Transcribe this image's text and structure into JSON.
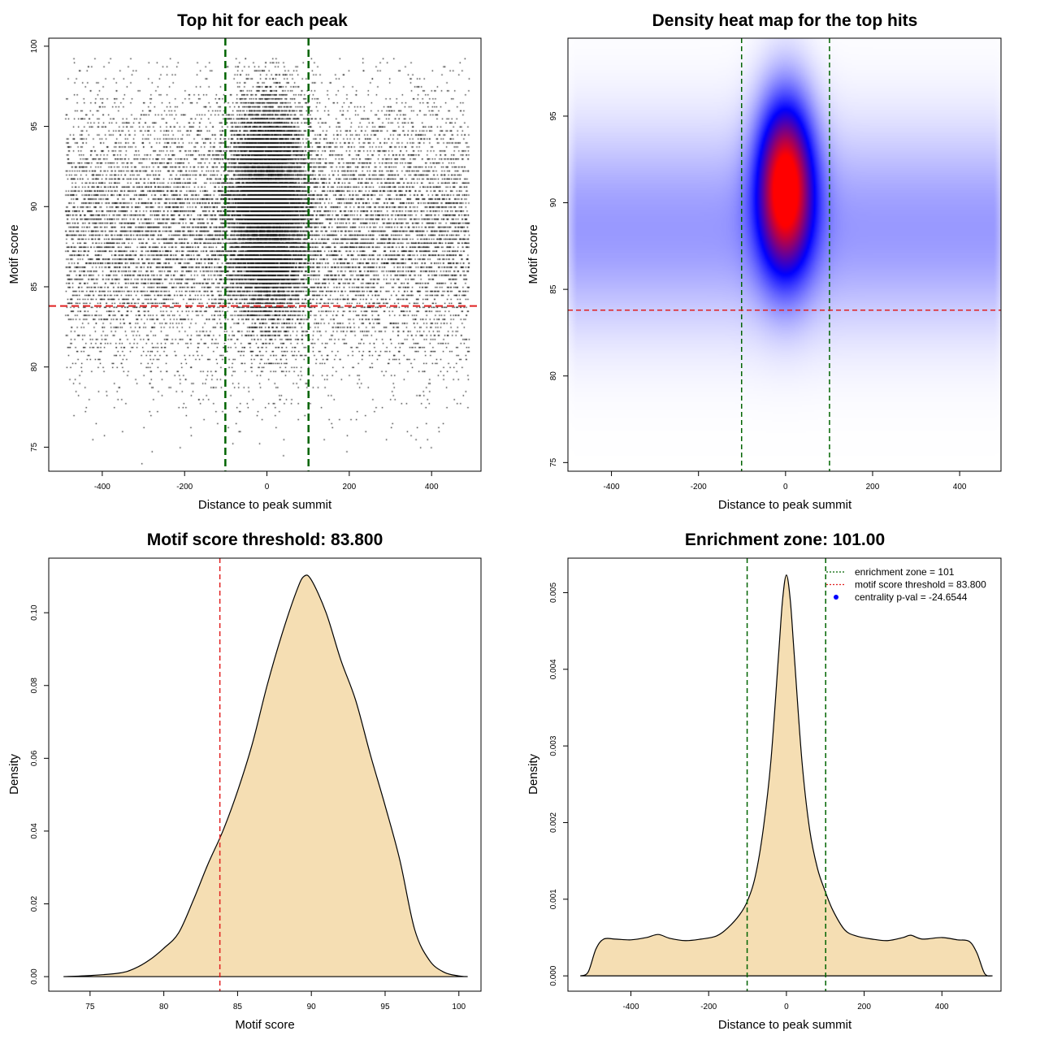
{
  "chart_data": [
    {
      "type": "scatter",
      "title": "Top hit for each peak",
      "xlabel": "Distance to peak summit",
      "ylabel": "Motif score",
      "xlim": [
        -530,
        520
      ],
      "ylim": [
        73.5,
        100.5
      ],
      "xticks": [
        -400,
        -200,
        0,
        200,
        400
      ],
      "yticks": [
        75,
        80,
        85,
        90,
        95,
        100
      ],
      "xtick_labels": [
        "-400",
        "-200",
        "0",
        "200",
        "400"
      ],
      "ytick_labels": [
        "75",
        "80",
        "85",
        "90",
        "95",
        "100"
      ],
      "n_points": 26000,
      "distribution": {
        "background_x_range": [
          -490,
          490
        ],
        "background_score_mean": 88.5,
        "background_score_sd": 4.2,
        "central_x_sd": 45,
        "central_score_mean": 90,
        "central_score_sd": 3.3
      },
      "vlines": [
        -101,
        101
      ],
      "hline": 83.8,
      "vline_color": "#006400",
      "hline_color": "#e02020",
      "grid": false
    },
    {
      "type": "heatmap",
      "title": "Density heat map for the top hits",
      "xlabel": "Distance to peak summit",
      "ylabel": "Motif score",
      "xlim": [
        -500,
        495
      ],
      "ylim": [
        74.5,
        99.5
      ],
      "xticks": [
        -400,
        -200,
        0,
        200,
        400
      ],
      "yticks": [
        75,
        80,
        85,
        90,
        95
      ],
      "xtick_labels": [
        "-400",
        "-200",
        "0",
        "200",
        "400"
      ],
      "ytick_labels": [
        "75",
        "80",
        "85",
        "90",
        "95"
      ],
      "hotspot": {
        "x": 0,
        "y": 91,
        "x_sd": 45,
        "y_sd": 3.5
      },
      "background": {
        "x_range": [
          -490,
          490
        ],
        "y": 88.5,
        "y_sd": 4
      },
      "colors": [
        "#ffffff",
        "#0000ff",
        "#ff0000"
      ],
      "vlines": [
        -101,
        101
      ],
      "hline": 83.8,
      "vline_color": "#006400",
      "hline_color": "#e02020"
    },
    {
      "type": "area",
      "title": "Motif score threshold: 83.800",
      "xlabel": "Motif score",
      "ylabel": "Density",
      "xlim": [
        72.2,
        101.5
      ],
      "ylim": [
        -0.004,
        0.115
      ],
      "xticks": [
        75,
        80,
        85,
        90,
        95,
        100
      ],
      "yticks": [
        0,
        0.02,
        0.04,
        0.06,
        0.08,
        0.1
      ],
      "xtick_labels": [
        "75",
        "80",
        "85",
        "90",
        "95",
        "100"
      ],
      "ytick_labels": [
        "0.00",
        "0.02",
        "0.04",
        "0.06",
        "0.08",
        "0.10"
      ],
      "x": [
        73.2,
        75,
        77,
        78,
        79,
        80,
        81,
        82,
        83,
        84,
        85,
        86,
        87,
        88,
        89,
        89.5,
        90,
        91,
        92,
        93,
        94,
        95,
        96,
        97,
        98,
        99,
        100,
        100.6
      ],
      "y": [
        0,
        0.0003,
        0.001,
        0.0022,
        0.0045,
        0.0078,
        0.012,
        0.021,
        0.031,
        0.04,
        0.051,
        0.064,
        0.08,
        0.094,
        0.106,
        0.11,
        0.109,
        0.1,
        0.087,
        0.076,
        0.061,
        0.047,
        0.032,
        0.013,
        0.0045,
        0.0012,
        0.0002,
        0
      ],
      "fill": "#f5deb3",
      "vline": 83.8,
      "vline_color": "#e02020",
      "grid": false
    },
    {
      "type": "area",
      "title": "Enrichment zone: 101.00",
      "xlabel": "Distance to peak summit",
      "ylabel": "Density",
      "xlim": [
        -562,
        552
      ],
      "ylim": [
        -0.0002,
        0.00545
      ],
      "xticks": [
        -400,
        -200,
        0,
        200,
        400
      ],
      "yticks": [
        0,
        0.001,
        0.002,
        0.003,
        0.004,
        0.005
      ],
      "xtick_labels": [
        "-400",
        "-200",
        "0",
        "200",
        "400"
      ],
      "ytick_labels": [
        "0.000",
        "0.001",
        "0.002",
        "0.003",
        "0.004",
        "0.005"
      ],
      "x": [
        -530,
        -510,
        -490,
        -470,
        -440,
        -400,
        -360,
        -330,
        -300,
        -260,
        -220,
        -180,
        -150,
        -120,
        -100,
        -80,
        -60,
        -40,
        -20,
        -10,
        0,
        10,
        20,
        40,
        60,
        80,
        100,
        120,
        150,
        180,
        220,
        260,
        300,
        320,
        350,
        400,
        440,
        470,
        490,
        510,
        530
      ],
      "y": [
        0,
        5e-05,
        0.00035,
        0.00048,
        0.00048,
        0.00047,
        0.0005,
        0.00054,
        0.00049,
        0.00046,
        0.00048,
        0.00052,
        0.00063,
        0.0008,
        0.00098,
        0.0013,
        0.0019,
        0.0028,
        0.0042,
        0.0049,
        0.00523,
        0.0049,
        0.0042,
        0.0028,
        0.0019,
        0.0014,
        0.0011,
        0.00085,
        0.0006,
        0.00052,
        0.00048,
        0.00046,
        0.0005,
        0.00053,
        0.00048,
        0.0005,
        0.00047,
        0.00045,
        0.0003,
        3e-05,
        0
      ],
      "fill": "#f5deb3",
      "vlines": [
        -101,
        101
      ],
      "vline_color": "#006400",
      "legend": {
        "position": "top-right",
        "entries": [
          {
            "label": "enrichment zone = 101",
            "style": "dotted-line",
            "color": "#006400"
          },
          {
            "label": "motif score threshold = 83.800",
            "style": "dotted-line",
            "color": "#e02020"
          },
          {
            "label": "centrality p-val = -24.6544",
            "style": "point",
            "color": "#0000ff"
          }
        ]
      },
      "grid": false
    }
  ]
}
